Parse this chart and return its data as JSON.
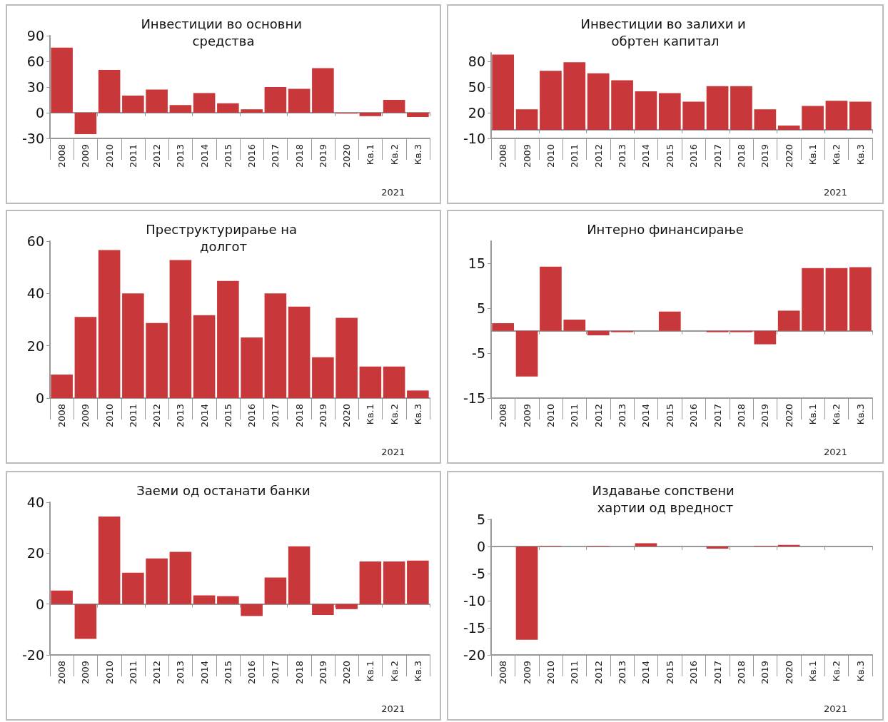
{
  "chart_data": [
    {
      "type": "bar",
      "title": "Инвестиции во основни средства",
      "categories": [
        "2008",
        "2009",
        "2010",
        "2011",
        "2012",
        "2013",
        "2014",
        "2015",
        "2016",
        "2017",
        "2018",
        "2019",
        "2020",
        "Кв.1",
        "Кв.2",
        "Кв.3"
      ],
      "values": [
        76,
        -25,
        50,
        20,
        27,
        9,
        23,
        11,
        4,
        30,
        28,
        52,
        -1,
        -4,
        15,
        -5
      ],
      "color": "#c8383a",
      "ylim": [
        -30,
        90
      ],
      "yticks": [
        -30,
        0,
        30,
        60,
        90
      ],
      "annotations": [
        "2021"
      ]
    },
    {
      "type": "bar",
      "title": "Инвестиции во залихи и обртен капитал",
      "categories": [
        "2008",
        "2009",
        "2010",
        "2011",
        "2012",
        "2013",
        "2014",
        "2015",
        "2016",
        "2017",
        "2018",
        "2019",
        "2020",
        "Кв.1",
        "Кв.2",
        "Кв.3"
      ],
      "values": [
        88,
        24,
        69,
        79,
        66,
        58,
        45,
        43,
        33,
        51,
        51,
        24,
        5,
        28,
        34,
        33
      ],
      "color": "#c8383a",
      "ylim": [
        -10,
        90
      ],
      "yticks": [
        -10,
        20,
        50,
        80
      ],
      "annotations": [
        "2021"
      ]
    },
    {
      "type": "bar",
      "title": "Преструктурирање на долгот",
      "categories": [
        "2008",
        "2009",
        "2010",
        "2011",
        "2012",
        "2013",
        "2014",
        "2015",
        "2016",
        "2017",
        "2018",
        "2019",
        "2020",
        "Кв.1",
        "Кв.2",
        "Кв.3"
      ],
      "values": [
        9,
        31,
        56.6,
        40,
        28.7,
        52.8,
        31.7,
        44.8,
        23.2,
        40,
        35,
        15.6,
        30.7,
        12.1,
        12.1,
        2.9
      ],
      "color": "#c8383a",
      "ylim": [
        0,
        60
      ],
      "yticks": [
        0,
        20,
        40,
        60
      ],
      "annotations": [
        "2021"
      ]
    },
    {
      "type": "bar",
      "title": "Интерно финансирање",
      "categories": [
        "2008",
        "2009",
        "2010",
        "2011",
        "2012",
        "2013",
        "2014",
        "2015",
        "2016",
        "2017",
        "2018",
        "2019",
        "2020",
        "Кв.1",
        "Кв.2",
        "Кв.3"
      ],
      "values": [
        1.7,
        -10.2,
        14.3,
        2.5,
        -1,
        -0.3,
        null,
        4.3,
        0,
        -0.3,
        -0.3,
        -3,
        4.5,
        14,
        14,
        14.2
      ],
      "color": "#c8383a",
      "ylim": [
        -15,
        20
      ],
      "yticks": [
        -15,
        -5,
        5,
        15
      ],
      "annotations": [
        "2021"
      ]
    },
    {
      "type": "bar",
      "title": "Заеми од останати банки",
      "categories": [
        "2008",
        "2009",
        "2010",
        "2011",
        "2012",
        "2013",
        "2014",
        "2015",
        "2016",
        "2017",
        "2018",
        "2019",
        "2020",
        "Кв.1",
        "Кв.2",
        "Кв.3"
      ],
      "values": [
        5.3,
        -13.7,
        34.4,
        12.3,
        17.9,
        20.5,
        3.4,
        3.1,
        -4.7,
        10.4,
        22.7,
        -4.3,
        -2,
        16.7,
        16.7,
        17.1
      ],
      "color": "#c8383a",
      "ylim": [
        -20,
        40
      ],
      "yticks": [
        -20,
        0,
        20,
        40
      ],
      "annotations": [
        "2021"
      ]
    },
    {
      "type": "bar",
      "title": "Издавање сопствени хартии од вредност",
      "categories": [
        "2008",
        "2009",
        "2010",
        "2011",
        "2012",
        "2013",
        "2014",
        "2015",
        "2016",
        "2017",
        "2018",
        "2019",
        "2020",
        "Кв.1",
        "Кв.2",
        "Кв.3"
      ],
      "values": [
        0,
        -17.2,
        0.1,
        0,
        0.1,
        0,
        0.6,
        0,
        0,
        -0.4,
        0,
        0.1,
        0.3,
        0,
        0,
        0
      ],
      "color": "#c8383a",
      "ylim": [
        -20,
        5
      ],
      "yticks": [
        -20,
        -15,
        -10,
        -5,
        0,
        5
      ],
      "annotations": [
        "2021"
      ]
    }
  ]
}
